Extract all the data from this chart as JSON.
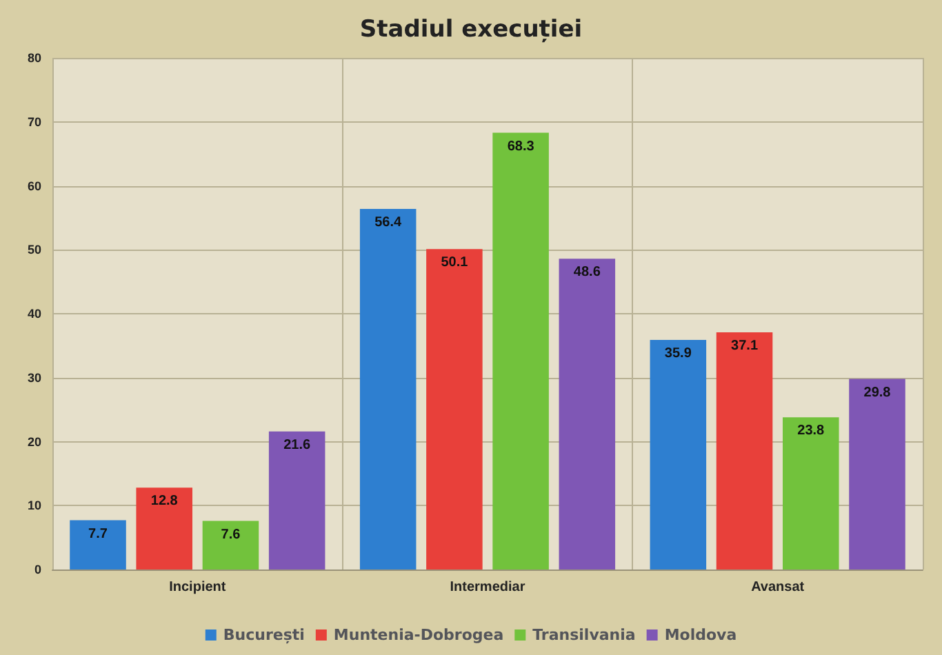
{
  "chart_data": {
    "type": "bar",
    "title": "Stadiul execuției",
    "categories": [
      "Incipient",
      "Intermediar",
      "Avansat"
    ],
    "series": [
      {
        "name": "București",
        "color": "#2e7fd0",
        "values": [
          7.7,
          56.4,
          35.9
        ]
      },
      {
        "name": "Muntenia-Dobrogea",
        "color": "#e8403a",
        "values": [
          12.8,
          50.1,
          37.1
        ]
      },
      {
        "name": "Transilvania",
        "color": "#72c23c",
        "values": [
          7.6,
          68.3,
          23.8
        ]
      },
      {
        "name": "Moldova",
        "color": "#7f57b5",
        "values": [
          21.6,
          48.6,
          29.8
        ]
      }
    ],
    "ylim": [
      0,
      80
    ],
    "yticks": [
      0,
      10,
      20,
      30,
      40,
      50,
      60,
      70,
      80
    ],
    "grid": true,
    "legend": "bottom",
    "data_labels": true
  }
}
